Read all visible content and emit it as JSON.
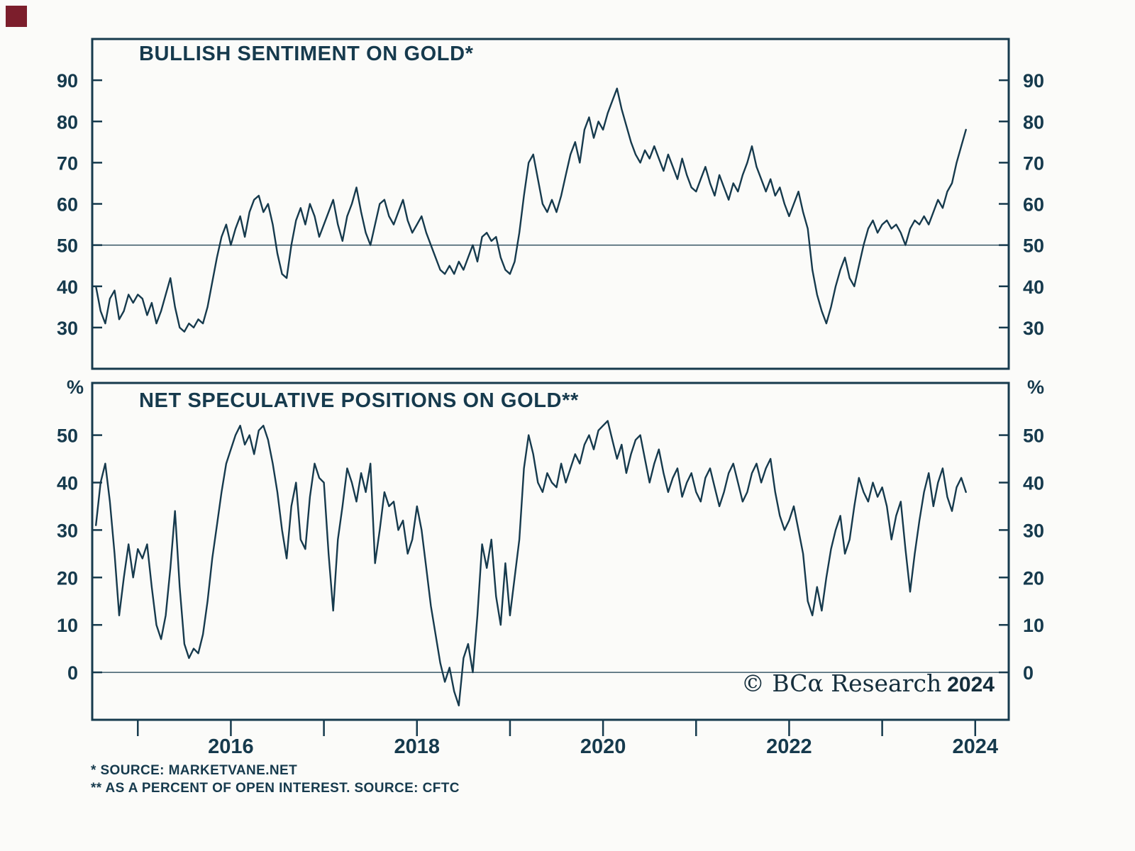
{
  "page": {
    "background": "#fbfbf9",
    "ink": "#163a4d",
    "corner_mark_color": "#7c1e2c"
  },
  "watermark": {
    "text": "© BCα Research",
    "year": "2024"
  },
  "footnotes": [
    "* SOURCE: MARKETVANE.NET",
    "** AS A PERCENT OF OPEN INTEREST. SOURCE: CFTC"
  ],
  "x_axis": {
    "minor_ticks": [
      2015,
      2016,
      2017,
      2018,
      2019,
      2020,
      2021,
      2022,
      2023,
      2024
    ],
    "labeled_ticks": [
      2016,
      2018,
      2020,
      2022,
      2024
    ]
  },
  "chart_data": [
    {
      "type": "line",
      "title": "BULLISH SENTIMENT ON GOLD*",
      "unit": "%",
      "xlim": [
        2014.51,
        2024.36
      ],
      "ylim": [
        20,
        100
      ],
      "yticks": [
        30,
        40,
        50,
        60,
        70,
        80,
        90
      ],
      "baseline": 50,
      "grid": "baseline-only",
      "legend": "none",
      "series": [
        {
          "name": "Bullish sentiment on gold (% bulls, weekly)",
          "x0": 2014.55,
          "dx": 0.05,
          "y": [
            40,
            34,
            31,
            37,
            39,
            32,
            34,
            38,
            36,
            38,
            37,
            33,
            36,
            31,
            34,
            38,
            42,
            35,
            30,
            29,
            31,
            30,
            32,
            31,
            35,
            41,
            47,
            52,
            55,
            50,
            54,
            57,
            52,
            58,
            61,
            62,
            58,
            60,
            55,
            48,
            43,
            42,
            50,
            56,
            59,
            55,
            60,
            57,
            52,
            55,
            58,
            61,
            55,
            51,
            57,
            60,
            64,
            58,
            53,
            50,
            55,
            60,
            61,
            57,
            55,
            58,
            61,
            56,
            53,
            55,
            57,
            53,
            50,
            47,
            44,
            43,
            45,
            43,
            46,
            44,
            47,
            50,
            46,
            52,
            53,
            51,
            52,
            47,
            44,
            43,
            46,
            53,
            62,
            70,
            72,
            66,
            60,
            58,
            61,
            58,
            62,
            67,
            72,
            75,
            70,
            78,
            81,
            76,
            80,
            78,
            82,
            85,
            88,
            83,
            79,
            75,
            72,
            70,
            73,
            71,
            74,
            71,
            68,
            72,
            69,
            66,
            71,
            67,
            64,
            63,
            66,
            69,
            65,
            62,
            67,
            64,
            61,
            65,
            63,
            67,
            70,
            74,
            69,
            66,
            63,
            66,
            62,
            64,
            60,
            57,
            60,
            63,
            58,
            54,
            44,
            38,
            34,
            31,
            35,
            40,
            44,
            47,
            42,
            40,
            45,
            50,
            54,
            56,
            53,
            55,
            56,
            54,
            55,
            53,
            50,
            54,
            56,
            55,
            57,
            55,
            58,
            61,
            59,
            63,
            65,
            70,
            74,
            78
          ]
        }
      ]
    },
    {
      "type": "line",
      "title": "NET SPECULATIVE POSITIONS ON GOLD**",
      "unit": "%",
      "xlim": [
        2014.51,
        2024.36
      ],
      "ylim": [
        -10,
        61
      ],
      "yticks": [
        0,
        10,
        20,
        30,
        40,
        50
      ],
      "baseline": 0,
      "grid": "baseline-only",
      "legend": "none",
      "series": [
        {
          "name": "Net speculative positions on gold (% of open interest, weekly)",
          "x0": 2014.55,
          "dx": 0.05,
          "y": [
            31,
            40,
            44,
            36,
            25,
            12,
            20,
            27,
            20,
            26,
            24,
            27,
            18,
            10,
            7,
            12,
            22,
            34,
            18,
            6,
            3,
            5,
            4,
            8,
            15,
            24,
            31,
            38,
            44,
            47,
            50,
            52,
            48,
            50,
            46,
            51,
            52,
            49,
            44,
            38,
            30,
            24,
            35,
            40,
            28,
            26,
            37,
            44,
            41,
            40,
            25,
            13,
            28,
            35,
            43,
            40,
            36,
            42,
            38,
            44,
            23,
            30,
            38,
            35,
            36,
            30,
            32,
            25,
            28,
            35,
            30,
            22,
            14,
            8,
            2,
            -2,
            1,
            -4,
            -7,
            3,
            6,
            0,
            12,
            27,
            22,
            28,
            16,
            10,
            23,
            12,
            20,
            28,
            43,
            50,
            46,
            40,
            38,
            42,
            40,
            39,
            44,
            40,
            43,
            46,
            44,
            48,
            50,
            47,
            51,
            52,
            53,
            49,
            45,
            48,
            42,
            46,
            49,
            50,
            45,
            40,
            44,
            47,
            42,
            38,
            41,
            43,
            37,
            40,
            42,
            38,
            36,
            41,
            43,
            39,
            35,
            38,
            42,
            44,
            40,
            36,
            38,
            42,
            44,
            40,
            43,
            45,
            38,
            33,
            30,
            32,
            35,
            30,
            25,
            15,
            12,
            18,
            13,
            20,
            26,
            30,
            33,
            25,
            28,
            35,
            41,
            38,
            36,
            40,
            37,
            39,
            35,
            28,
            33,
            36,
            26,
            17,
            25,
            32,
            38,
            42,
            35,
            40,
            43,
            37,
            34,
            39,
            41,
            38
          ]
        }
      ]
    }
  ]
}
